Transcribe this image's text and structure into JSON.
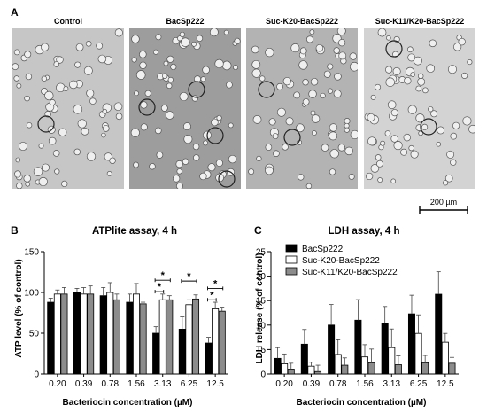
{
  "panel_a": {
    "letter": "A",
    "labels": [
      "Control",
      "BacSp222",
      "Suc-K20-BacSp222",
      "Suc-K11/K20-BacSp222"
    ],
    "image_tones": [
      "#c6c6c6",
      "#9d9d9d",
      "#b3b3b3",
      "#d3d3d3"
    ],
    "scale_bar_label": "200 µm"
  },
  "chart_data": [
    {
      "type": "bar",
      "panel": "B",
      "title": "ATPlite assay, 4 h",
      "xlabel": "Bacteriocin concentration (µM)",
      "ylabel": "ATP level (% of control)",
      "ylim": [
        0,
        150
      ],
      "yticks": [
        0,
        50,
        100,
        150
      ],
      "grid": false,
      "categories": [
        "0.20",
        "0.39",
        "0.78",
        "1.56",
        "3.13",
        "6.25",
        "12.5"
      ],
      "series": [
        {
          "name": "BacSp222",
          "color": "#000000",
          "values": [
            88,
            100,
            96,
            88,
            50,
            55,
            38
          ],
          "errors": [
            5,
            5,
            10,
            10,
            8,
            15,
            7
          ]
        },
        {
          "name": "Suc-K20-BacSp222",
          "color": "#ffffff",
          "values": [
            98,
            98,
            100,
            98,
            91,
            85,
            80
          ],
          "errors": [
            5,
            8,
            12,
            13,
            7,
            6,
            8
          ]
        },
        {
          "name": "Suc-K11/K20-BacSp222",
          "color": "#8c8c8c",
          "values": [
            98,
            98,
            91,
            86,
            91,
            92,
            77
          ],
          "errors": [
            8,
            10,
            7,
            2,
            5,
            5,
            5
          ]
        }
      ],
      "significance": [
        {
          "category": "3.13",
          "pairs": [
            [
              0,
              2
            ],
            [
              0,
              1
            ]
          ],
          "label": "*"
        },
        {
          "category": "6.25",
          "pairs": [
            [
              0,
              2
            ]
          ],
          "label": "*"
        },
        {
          "category": "12.5",
          "pairs": [
            [
              0,
              2
            ],
            [
              0,
              1
            ]
          ],
          "label": "*"
        }
      ]
    },
    {
      "type": "bar",
      "panel": "C",
      "title": "LDH assay, 4 h",
      "xlabel": "Bacteriocin concentration (µM)",
      "ylabel": "LDH release (% of control)",
      "ylim": [
        0,
        25
      ],
      "yticks": [
        0,
        5,
        10,
        15,
        20,
        25
      ],
      "grid": false,
      "legend_position": "top-left",
      "categories": [
        "0.20",
        "0.39",
        "0.78",
        "1.56",
        "3.13",
        "6.25",
        "12.5"
      ],
      "series": [
        {
          "name": "BacSp222",
          "color": "#000000",
          "values": [
            3.2,
            6.1,
            10.0,
            11.0,
            10.3,
            12.3,
            16.3
          ],
          "errors": [
            2.2,
            3.0,
            4.2,
            4.2,
            3.5,
            3.8,
            4.6
          ]
        },
        {
          "name": "Suc-K20-BacSp222",
          "color": "#ffffff",
          "values": [
            2.1,
            1.6,
            4.0,
            3.5,
            5.4,
            8.3,
            6.5
          ],
          "errors": [
            2.0,
            0.8,
            3.0,
            2.5,
            3.8,
            3.8,
            1.8
          ]
        },
        {
          "name": "Suc-K11/K20-BacSp222",
          "color": "#8c8c8c",
          "values": [
            1.0,
            0.5,
            1.8,
            2.3,
            1.9,
            2.3,
            2.2
          ],
          "errors": [
            1.2,
            1.3,
            1.5,
            2.8,
            1.8,
            1.5,
            1.2
          ]
        }
      ]
    }
  ]
}
